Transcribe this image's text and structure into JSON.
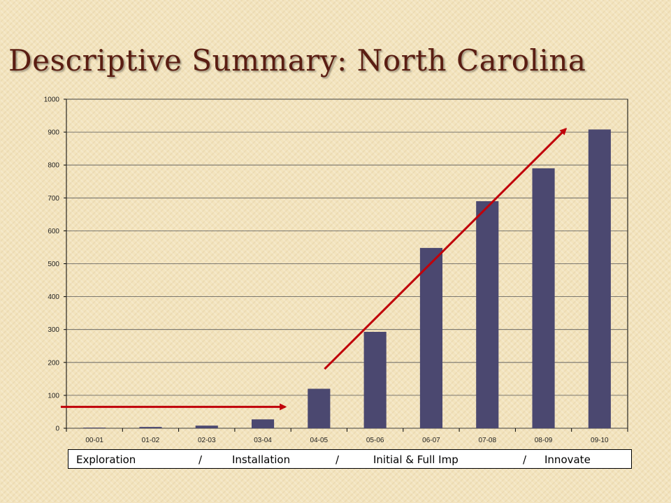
{
  "title": "Descriptive Summary: North Carolina",
  "chart_data": {
    "type": "bar",
    "categories": [
      "00-01",
      "01-02",
      "02-03",
      "03-04",
      "04-05",
      "05-06",
      "06-07",
      "07-08",
      "08-09",
      "09-10"
    ],
    "values": [
      2,
      4,
      8,
      27,
      120,
      293,
      548,
      690,
      790,
      908
    ],
    "ylim": [
      0,
      1000
    ],
    "yticks": [
      0,
      100,
      200,
      300,
      400,
      500,
      600,
      700,
      800,
      900,
      1000
    ],
    "ytick_labels": [
      "0",
      "100",
      "200",
      "300",
      "400",
      "500",
      "600",
      "700",
      "800",
      "900",
      "1000"
    ],
    "grid": true,
    "bar_color": "#4b4870",
    "annotations": [
      {
        "type": "arrow",
        "color": "#c0000a",
        "from": {
          "x": "00-01",
          "y": 65
        },
        "to": {
          "x": "03-04",
          "y": 65
        }
      },
      {
        "type": "arrow",
        "color": "#c0000a",
        "from": {
          "x": "04-05",
          "y": 180
        },
        "to": {
          "x": "08-09",
          "y": 910
        }
      }
    ]
  },
  "phases": {
    "exploration": "Exploration",
    "sep1": "/",
    "installation": "Installation",
    "sep2": "/",
    "implementation": "Initial & Full Imp",
    "sep3": "/",
    "innovate": "Innovate"
  }
}
